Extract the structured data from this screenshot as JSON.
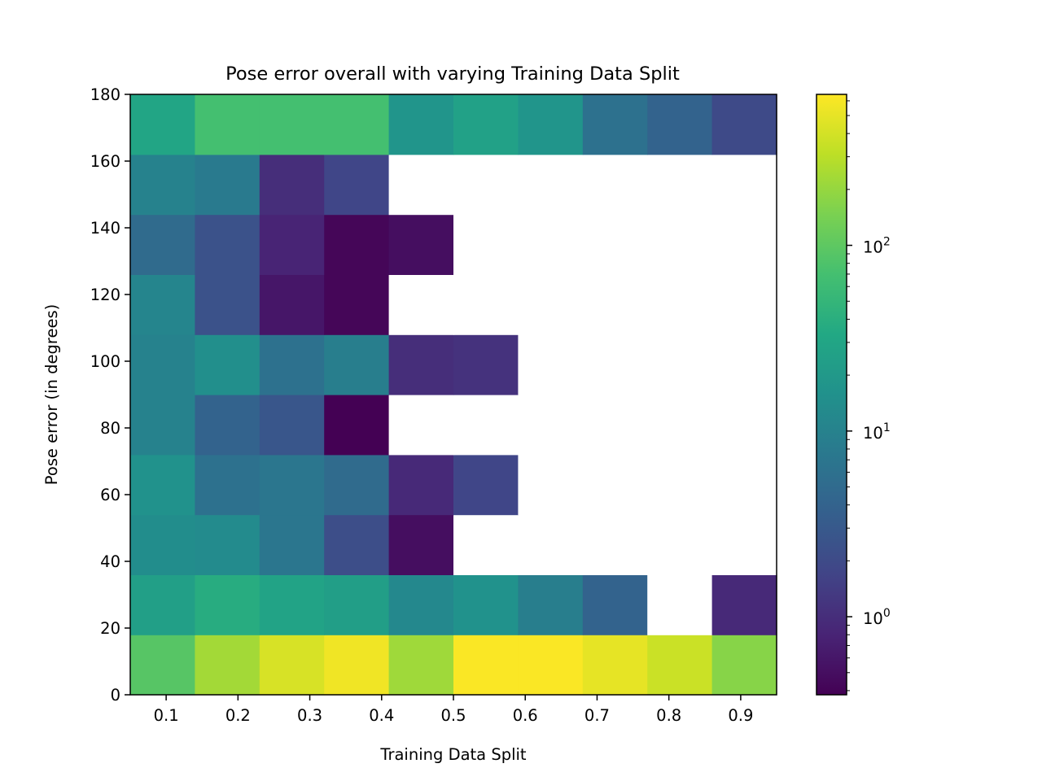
{
  "chart_data": {
    "type": "heatmap",
    "title": "Pose error overall with varying Training Data Split",
    "xlabel": "Training Data Split",
    "ylabel": "Pose error (in degrees)",
    "x_ticks": [
      "0.1",
      "0.2",
      "0.3",
      "0.4",
      "0.5",
      "0.6",
      "0.7",
      "0.8",
      "0.9"
    ],
    "y_ticks": [
      "0",
      "20",
      "40",
      "60",
      "80",
      "100",
      "120",
      "140",
      "160",
      "180"
    ],
    "xlim": [
      0.05,
      0.95
    ],
    "ylim": [
      0,
      180
    ],
    "x_edges": [
      0.05,
      0.14,
      0.23,
      0.32,
      0.41,
      0.5,
      0.59,
      0.68,
      0.77,
      0.86,
      0.95
    ],
    "y_edges": [
      0,
      18,
      36,
      54,
      72,
      90,
      108,
      126,
      144,
      162,
      180
    ],
    "color_scale": "log",
    "colormap": "viridis",
    "color_range": [
      0.38,
      650
    ],
    "colorbar_ticks": [
      {
        "value": 1,
        "base": "10",
        "exp": "0"
      },
      {
        "value": 10,
        "base": "10",
        "exp": "1"
      },
      {
        "value": 100,
        "base": "10",
        "exp": "2"
      }
    ],
    "empty_cell_color": "#ffffff",
    "counts": [
      [
        90,
        230,
        420,
        560,
        220,
        630,
        630,
        500,
        360,
        170
      ],
      [
        25,
        38,
        28,
        24,
        12,
        16,
        9,
        4,
        null,
        0.9
      ],
      [
        14,
        13,
        7,
        2.2,
        0.5,
        null,
        null,
        null,
        null,
        null
      ],
      [
        16,
        6,
        7,
        5,
        0.9,
        1.8,
        null,
        null,
        null,
        null
      ],
      [
        10,
        4,
        2.8,
        0.38,
        null,
        null,
        null,
        null,
        null,
        null
      ],
      [
        10,
        15,
        6,
        9,
        1,
        1.1,
        null,
        null,
        null,
        null
      ],
      [
        11,
        2.5,
        0.6,
        0.42,
        null,
        null,
        null,
        null,
        null,
        null
      ],
      [
        5,
        2.5,
        0.8,
        0.42,
        0.5,
        null,
        null,
        null,
        null,
        null
      ],
      [
        10,
        8,
        1,
        1.8,
        null,
        null,
        null,
        null,
        null,
        null
      ],
      [
        30,
        70,
        70,
        70,
        18,
        26,
        18,
        6,
        4,
        2
      ]
    ]
  }
}
